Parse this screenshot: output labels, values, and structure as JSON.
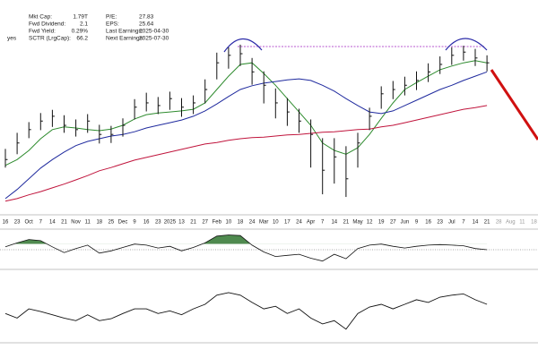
{
  "fundamentals": {
    "left": [
      {
        "label": "Mkt Cap:",
        "value": "1.79T"
      },
      {
        "label": "Fwd Dividend:",
        "value": "2.1"
      },
      {
        "label": "Fwd Yield:",
        "value": "0.29%"
      },
      {
        "label": "SCTR (LrgCap):",
        "value": "66.2"
      }
    ],
    "right": [
      {
        "label": "P/E:",
        "value": "27.83"
      },
      {
        "label": "EPS:",
        "value": "25.64"
      },
      {
        "label": "Last Earnings:",
        "value": "2025-04-30"
      },
      {
        "label": "Next Earnings:",
        "value": "2025-07-30"
      }
    ],
    "flag": "yes"
  },
  "chart_data": [
    {
      "type": "ohlc",
      "categories": [
        "16",
        "23",
        "Oct",
        "7",
        "14",
        "21",
        "Nov",
        "11",
        "18",
        "25",
        "Dec",
        "9",
        "16",
        "23",
        "2025",
        "13",
        "21",
        "27",
        "Feb",
        "10",
        "18",
        "24",
        "Mar",
        "10",
        "17",
        "24",
        "Apr",
        "7",
        "14",
        "21",
        "May",
        "12",
        "19",
        "27",
        "Jun",
        "9",
        "16",
        "23",
        "Jul",
        "7",
        "14",
        "21",
        "28",
        "Aug",
        "11",
        "18"
      ],
      "high": [
        555,
        585,
        605,
        622,
        628,
        618,
        610,
        620,
        600,
        598,
        612,
        648,
        660,
        652,
        662,
        650,
        655,
        685,
        735,
        745,
        750,
        725,
        700,
        668,
        650,
        630,
        610,
        575,
        575,
        560,
        585,
        632,
        672,
        682,
        690,
        700,
        715,
        728,
        745,
        748,
        742,
        730,
        null,
        null,
        null,
        null
      ],
      "low": [
        520,
        545,
        575,
        590,
        596,
        585,
        578,
        585,
        565,
        566,
        578,
        610,
        625,
        620,
        628,
        615,
        620,
        640,
        685,
        705,
        710,
        675,
        640,
        612,
        598,
        585,
        520,
        470,
        490,
        465,
        520,
        590,
        630,
        648,
        655,
        665,
        680,
        695,
        712,
        720,
        710,
        700,
        null,
        null,
        null,
        null
      ],
      "close": [
        535,
        566,
        591,
        607,
        616,
        599,
        591,
        607,
        582,
        582,
        599,
        633,
        641,
        636,
        649,
        633,
        641,
        666,
        716,
        730,
        733,
        699,
        674,
        641,
        624,
        607,
        582,
        515,
        540,
        499,
        566,
        616,
        658,
        666,
        674,
        683,
        699,
        713,
        730,
        736,
        725,
        716,
        null,
        null,
        null,
        null
      ],
      "bar_color": "#111111",
      "ma": [
        {
          "color": "#2e8b2e",
          "values": [
            524,
            535,
            552,
            574,
            591,
            596,
            594,
            591,
            589,
            592,
            599,
            611,
            619,
            622,
            624,
            626,
            629,
            641,
            666,
            691,
            713,
            716,
            696,
            674,
            649,
            624,
            599,
            566,
            552,
            545,
            557,
            582,
            612,
            641,
            666,
            679,
            691,
            703,
            710,
            716,
            720,
            716,
            null,
            null,
            null,
            null
          ]
        },
        {
          "color": "#1f2a9e",
          "values": [
            462,
            479,
            499,
            519,
            535,
            549,
            561,
            569,
            574,
            579,
            582,
            587,
            594,
            599,
            604,
            609,
            616,
            626,
            639,
            653,
            666,
            673,
            678,
            681,
            684,
            686,
            683,
            674,
            663,
            649,
            636,
            624,
            621,
            626,
            636,
            646,
            656,
            666,
            674,
            683,
            691,
            699,
            null,
            null,
            null,
            null
          ]
        },
        {
          "color": "#c0143c",
          "values": [
            457,
            462,
            469,
            475,
            482,
            489,
            497,
            505,
            514,
            520,
            527,
            534,
            539,
            544,
            549,
            554,
            559,
            564,
            567,
            571,
            574,
            576,
            577,
            579,
            581,
            582,
            584,
            586,
            587,
            589,
            591,
            592,
            596,
            599,
            604,
            609,
            614,
            619,
            624,
            629,
            632,
            636,
            null,
            null,
            null,
            null
          ]
        }
      ],
      "ylim": [
        440,
        800
      ]
    },
    {
      "type": "oscillator",
      "color": "#111111",
      "fill_color": "#4f8a4f",
      "reference": 0,
      "fill_above": 1,
      "values": [
        0.5,
        1.2,
        1.8,
        1.6,
        0.5,
        -0.5,
        0.2,
        0.8,
        -0.6,
        -0.2,
        0.4,
        1.0,
        0.8,
        0.3,
        0.6,
        -0.2,
        0.4,
        1.2,
        2.4,
        2.6,
        2.5,
        0.8,
        -0.4,
        -1.2,
        -1.0,
        -0.8,
        -1.5,
        -2.0,
        -0.8,
        -1.6,
        0.2,
        0.8,
        1.0,
        0.6,
        0.3,
        0.6,
        0.8,
        0.9,
        0.8,
        0.7,
        0.2,
        0.0,
        null,
        null,
        null,
        null
      ],
      "ylim": [
        -3,
        3
      ]
    },
    {
      "type": "line",
      "color": "#111111",
      "values": [
        38,
        31,
        45,
        41,
        36,
        31,
        27,
        36,
        27,
        30,
        38,
        45,
        45,
        38,
        42,
        36,
        45,
        52,
        66,
        70,
        66,
        55,
        45,
        49,
        38,
        45,
        31,
        22,
        27,
        14,
        38,
        48,
        52,
        45,
        52,
        59,
        55,
        63,
        66,
        68,
        59,
        52,
        null,
        null,
        null,
        null
      ],
      "ylim": [
        0,
        100
      ]
    }
  ]
}
